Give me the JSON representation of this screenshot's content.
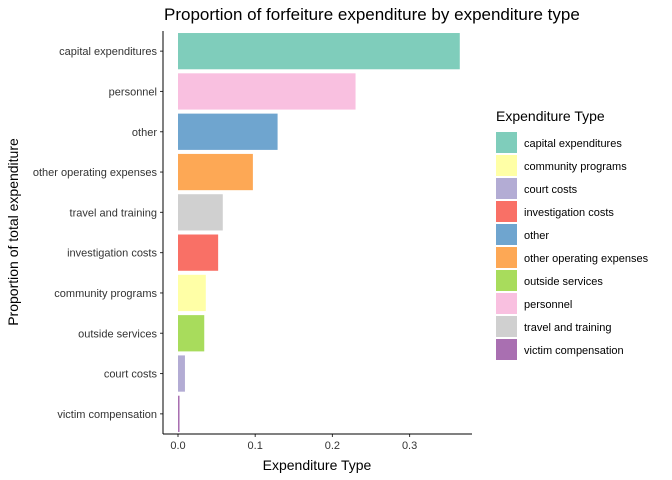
{
  "chart_data": {
    "type": "bar",
    "orientation": "horizontal",
    "title": "Proportion of forfeiture expenditure by expenditure type",
    "xlabel": "Expenditure Type",
    "ylabel": "Proportion of total expenditure",
    "xlim": [
      0,
      0.38
    ],
    "xticks": [
      0.0,
      0.1,
      0.2,
      0.3
    ],
    "xtick_labels": [
      "0.0",
      "0.1",
      "0.2",
      "0.3"
    ],
    "grid": false,
    "legend_position": "right",
    "legend_title": "Expenditure Type",
    "categories": [
      "capital expenditures",
      "personnel",
      "other",
      "other operating expenses",
      "travel and training",
      "investigation costs",
      "community programs",
      "outside services",
      "court costs",
      "victim compensation"
    ],
    "values": [
      0.365,
      0.23,
      0.129,
      0.097,
      0.058,
      0.052,
      0.036,
      0.034,
      0.009,
      0.002
    ],
    "colors": [
      "#7fcdbb",
      "#f9c0e0",
      "#6fa5cf",
      "#fda855",
      "#d0d0d0",
      "#f97066",
      "#ffffa6",
      "#a8dc5c",
      "#b3acd4",
      "#a96fb1"
    ],
    "legend": [
      {
        "label": "capital expenditures",
        "color": "#7fcdbb"
      },
      {
        "label": "community programs",
        "color": "#ffffa6"
      },
      {
        "label": "court costs",
        "color": "#b3acd4"
      },
      {
        "label": "investigation costs",
        "color": "#f97066"
      },
      {
        "label": "other",
        "color": "#6fa5cf"
      },
      {
        "label": "other operating expenses",
        "color": "#fda855"
      },
      {
        "label": "outside services",
        "color": "#a8dc5c"
      },
      {
        "label": "personnel",
        "color": "#f9c0e0"
      },
      {
        "label": "travel and training",
        "color": "#d0d0d0"
      },
      {
        "label": "victim compensation",
        "color": "#a96fb1"
      }
    ]
  }
}
